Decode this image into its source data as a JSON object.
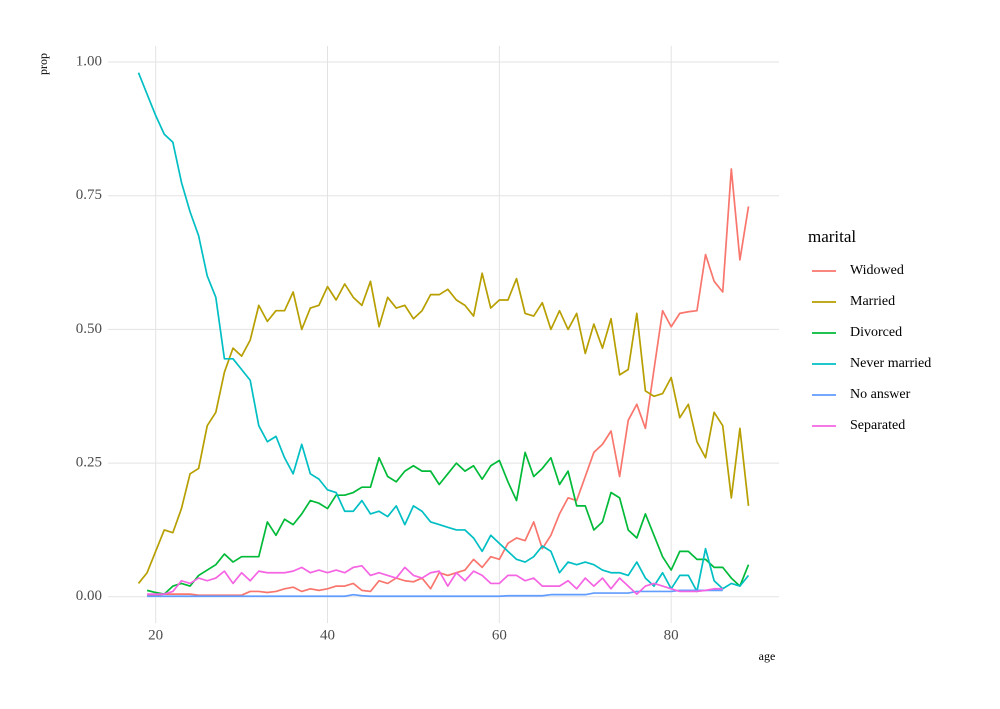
{
  "chart_data": {
    "type": "line",
    "x_label": "age",
    "y_label": "prop",
    "legend_title": "marital",
    "x": [
      18,
      19,
      20,
      21,
      22,
      23,
      24,
      25,
      26,
      27,
      28,
      29,
      30,
      31,
      32,
      33,
      34,
      35,
      36,
      37,
      38,
      39,
      40,
      41,
      42,
      43,
      44,
      45,
      46,
      47,
      48,
      49,
      50,
      51,
      52,
      53,
      54,
      55,
      56,
      57,
      58,
      59,
      60,
      61,
      62,
      63,
      64,
      65,
      66,
      67,
      68,
      69,
      70,
      71,
      72,
      73,
      74,
      75,
      76,
      77,
      78,
      79,
      80,
      81,
      82,
      83,
      84,
      85,
      86,
      87,
      88,
      89
    ],
    "xlim": [
      14.45,
      92.55
    ],
    "xticks": [
      20,
      40,
      60,
      80
    ],
    "ylim": [
      -0.049,
      1.03
    ],
    "yticks": [
      {
        "value": 0,
        "label": "0.00"
      },
      {
        "value": 0.25,
        "label": "0.25"
      },
      {
        "value": 0.5,
        "label": "0.50"
      },
      {
        "value": 0.75,
        "label": "0.75"
      },
      {
        "value": 1,
        "label": "1.00"
      }
    ],
    "grid": true,
    "legend_position": "right",
    "series": [
      {
        "name": "Widowed",
        "color": "#F8766D",
        "values": [
          null,
          0.003,
          0.003,
          0.005,
          0.005,
          0.005,
          0.005,
          0.003,
          0.003,
          0.003,
          0.003,
          0.003,
          0.003,
          0.01,
          0.01,
          0.008,
          0.01,
          0.015,
          0.018,
          0.01,
          0.015,
          0.012,
          0.015,
          0.02,
          0.02,
          0.025,
          0.012,
          0.01,
          0.03,
          0.025,
          0.035,
          0.03,
          0.028,
          0.035,
          0.015,
          0.045,
          0.04,
          0.045,
          0.05,
          0.07,
          0.055,
          0.075,
          0.07,
          0.1,
          0.11,
          0.105,
          0.14,
          0.09,
          0.115,
          0.155,
          0.185,
          0.18,
          0.225,
          0.27,
          0.285,
          0.31,
          0.225,
          0.33,
          0.36,
          0.315,
          0.425,
          0.535,
          0.505,
          0.53,
          0.533,
          0.535,
          0.64,
          0.59,
          0.57,
          0.8,
          0.63,
          0.73
        ]
      },
      {
        "name": "Married",
        "color": "#B79F00",
        "values": [
          0.025,
          0.045,
          0.085,
          0.125,
          0.12,
          0.165,
          0.23,
          0.24,
          0.32,
          0.345,
          0.42,
          0.465,
          0.45,
          0.48,
          0.545,
          0.515,
          0.535,
          0.535,
          0.57,
          0.5,
          0.54,
          0.545,
          0.58,
          0.555,
          0.585,
          0.56,
          0.545,
          0.59,
          0.505,
          0.56,
          0.54,
          0.545,
          0.52,
          0.535,
          0.565,
          0.565,
          0.575,
          0.555,
          0.545,
          0.525,
          0.605,
          0.54,
          0.555,
          0.555,
          0.595,
          0.53,
          0.525,
          0.55,
          0.5,
          0.535,
          0.5,
          0.53,
          0.455,
          0.51,
          0.465,
          0.52,
          0.415,
          0.425,
          0.53,
          0.385,
          0.375,
          0.38,
          0.41,
          0.335,
          0.36,
          0.29,
          0.26,
          0.345,
          0.32,
          0.185,
          0.315,
          0.17
        ]
      },
      {
        "name": "Divorced",
        "color": "#00BA38",
        "values": [
          null,
          0.012,
          0.008,
          0.005,
          0.02,
          0.025,
          0.02,
          0.04,
          0.05,
          0.06,
          0.08,
          0.065,
          0.075,
          0.075,
          0.075,
          0.14,
          0.115,
          0.145,
          0.135,
          0.155,
          0.18,
          0.175,
          0.165,
          0.19,
          0.19,
          0.195,
          0.205,
          0.205,
          0.26,
          0.225,
          0.215,
          0.235,
          0.245,
          0.235,
          0.235,
          0.21,
          0.23,
          0.25,
          0.235,
          0.245,
          0.22,
          0.245,
          0.255,
          0.215,
          0.18,
          0.27,
          0.225,
          0.24,
          0.26,
          0.21,
          0.235,
          0.17,
          0.17,
          0.125,
          0.14,
          0.195,
          0.185,
          0.125,
          0.11,
          0.155,
          0.115,
          0.075,
          0.05,
          0.085,
          0.085,
          0.07,
          0.07,
          0.055,
          0.055,
          0.035,
          0.02,
          0.06
        ]
      },
      {
        "name": "Never married",
        "color": "#00BFC4",
        "values": [
          0.98,
          0.94,
          0.9,
          0.865,
          0.85,
          0.775,
          0.72,
          0.675,
          0.6,
          0.56,
          0.445,
          0.445,
          0.425,
          0.405,
          0.32,
          0.29,
          0.3,
          0.26,
          0.23,
          0.285,
          0.23,
          0.22,
          0.2,
          0.195,
          0.16,
          0.16,
          0.18,
          0.155,
          0.16,
          0.15,
          0.17,
          0.135,
          0.17,
          0.16,
          0.14,
          0.135,
          0.13,
          0.125,
          0.125,
          0.11,
          0.085,
          0.115,
          0.1,
          0.085,
          0.07,
          0.065,
          0.075,
          0.095,
          0.085,
          0.045,
          0.065,
          0.06,
          0.065,
          0.06,
          0.05,
          0.045,
          0.045,
          0.04,
          0.065,
          0.035,
          0.02,
          0.045,
          0.015,
          0.04,
          0.04,
          0.01,
          0.09,
          0.03,
          0.015,
          0.025,
          0.02,
          0.04
        ]
      },
      {
        "name": "No answer",
        "color": "#619CFF",
        "values": [
          null,
          0.001,
          0.001,
          0.001,
          0.001,
          0.001,
          0.001,
          0.001,
          0.001,
          0.001,
          0.001,
          0.001,
          0.001,
          0.001,
          0.001,
          0.001,
          0.001,
          0.001,
          0.001,
          0.001,
          0.001,
          0.001,
          0.001,
          0.001,
          0.001,
          0.004,
          0.002,
          0.001,
          0.001,
          0.001,
          0.001,
          0.001,
          0.001,
          0.001,
          0.001,
          0.001,
          0.001,
          0.001,
          0.001,
          0.001,
          0.001,
          0.001,
          0.001,
          0.002,
          0.002,
          0.002,
          0.002,
          0.002,
          0.004,
          0.004,
          0.004,
          0.004,
          0.004,
          0.007,
          0.007,
          0.007,
          0.007,
          0.007,
          0.01,
          0.01,
          0.01,
          0.01,
          0.01,
          0.012,
          0.012,
          0.012,
          0.012,
          0.012,
          0.012,
          null,
          null,
          null
        ]
      },
      {
        "name": "Separated",
        "color": "#F564E3",
        "values": [
          null,
          0.005,
          0.005,
          0.005,
          0.01,
          0.03,
          0.025,
          0.035,
          0.03,
          0.035,
          0.048,
          0.025,
          0.045,
          0.03,
          0.048,
          0.045,
          0.045,
          0.045,
          0.048,
          0.055,
          0.045,
          0.05,
          0.045,
          0.05,
          0.045,
          0.055,
          0.058,
          0.04,
          0.045,
          0.04,
          0.035,
          0.055,
          0.04,
          0.035,
          0.045,
          0.048,
          0.02,
          0.045,
          0.03,
          0.048,
          0.04,
          0.025,
          0.025,
          0.04,
          0.04,
          0.03,
          0.035,
          0.02,
          0.02,
          0.02,
          0.03,
          0.015,
          0.035,
          0.02,
          0.035,
          0.015,
          0.035,
          0.02,
          0.005,
          0.02,
          0.025,
          0.02,
          0.015,
          0.01,
          0.01,
          0.01,
          0.012,
          0.015,
          0.015,
          null,
          null,
          null
        ]
      }
    ]
  }
}
